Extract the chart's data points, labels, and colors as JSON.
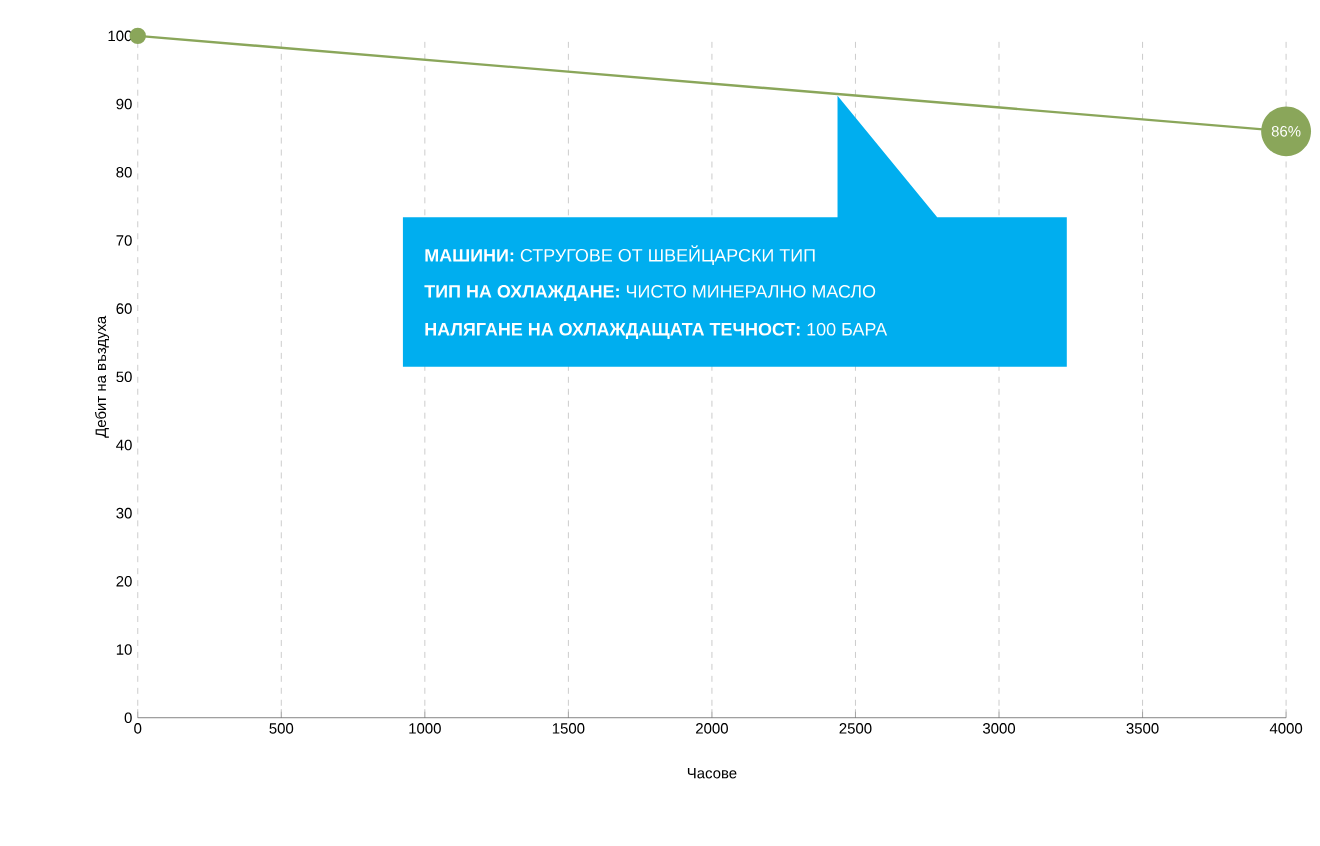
{
  "chart_data": {
    "type": "line",
    "xlabel": "Часове",
    "ylabel": "Дебит на въздуха",
    "x": [
      0,
      4000
    ],
    "series": [
      {
        "color": "#8aa65a",
        "values": [
          100,
          86
        ],
        "value_labels": [
          null,
          "86%"
        ]
      }
    ],
    "xlim": [
      0,
      4000
    ],
    "xticks": [
      0,
      500,
      1000,
      1500,
      2000,
      2500,
      3000,
      3500,
      4000
    ],
    "ylim": [
      0,
      100
    ],
    "yticks": [
      0,
      10,
      20,
      30,
      40,
      50,
      60,
      70,
      80,
      90,
      100
    ],
    "grid": "x",
    "marker": "circle",
    "line_style": "solid",
    "annotations": [
      "**МАШИНИ:** СТРУГОВЕ ОТ ШВЕЙЦАРСКИ ТИП",
      "**ТИП НА ОХЛАЖДАНЕ:** ЧИСТО МИНЕРАЛНО МАСЛО",
      "**НАЛЯГАНЕ НА ОХЛАЖДАЩАТА ТЕЧНОСТ:** 100 БАРА"
    ]
  }
}
